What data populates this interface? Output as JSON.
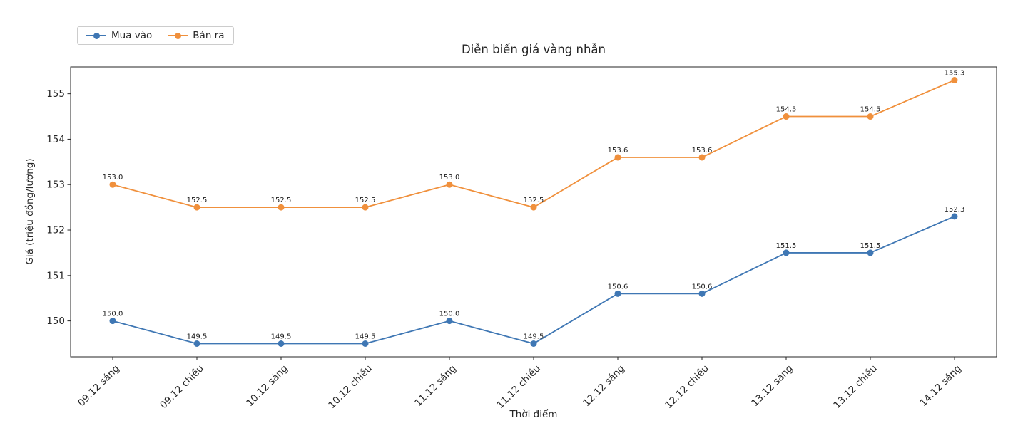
{
  "chart_data": {
    "type": "line",
    "title": "Diễn biến giá vàng nhẫn",
    "xlabel": "Thời điểm",
    "ylabel": "Giá (triệu đồng/lượng)",
    "categories": [
      "09.12 sáng",
      "09.12 chiều",
      "10.12 sáng",
      "10.12 chiều",
      "11.12 sáng",
      "11.12 chiều",
      "12.12 sáng",
      "12.12 chiều",
      "13.12 sáng",
      "13.12 chiều",
      "14.12 sáng"
    ],
    "series": [
      {
        "name": "Mua vào",
        "color": "#3f77b4",
        "values": [
          150.0,
          149.5,
          149.5,
          149.5,
          150.0,
          149.5,
          150.6,
          150.6,
          151.5,
          151.5,
          152.3
        ]
      },
      {
        "name": "Bán ra",
        "color": "#f0903c",
        "values": [
          153.0,
          152.5,
          152.5,
          152.5,
          153.0,
          152.5,
          153.6,
          153.6,
          154.5,
          154.5,
          155.3
        ]
      }
    ],
    "yticks": [
      150,
      151,
      152,
      153,
      154,
      155
    ],
    "ylim": [
      149.21,
      155.59
    ],
    "grid": false,
    "legend_position": "upper-left-outside",
    "data_labels": true,
    "label_decimals": 1,
    "axis_color": "#262626",
    "text_color": "#262626",
    "background": "#ffffff"
  }
}
